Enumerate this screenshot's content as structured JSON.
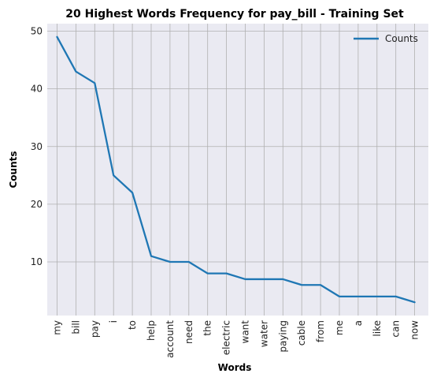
{
  "chart_data": {
    "type": "line",
    "title": "20 Highest Words Frequency for pay_bill - Training Set",
    "xlabel": "Words",
    "ylabel": "Counts",
    "categories": [
      "my",
      "bill",
      "pay",
      "i",
      "to",
      "help",
      "account",
      "need",
      "the",
      "electric",
      "want",
      "water",
      "paying",
      "cable",
      "from",
      "me",
      "a",
      "like",
      "can",
      "now"
    ],
    "series": [
      {
        "name": "Counts",
        "values": [
          49,
          43,
          41,
          25,
          22,
          11,
          10,
          10,
          8,
          8,
          7,
          7,
          7,
          6,
          6,
          4,
          4,
          4,
          4,
          3
        ],
        "color": "#1f77b4"
      }
    ],
    "ylim": [
      0.7,
      51.3
    ],
    "yticks": [
      10,
      20,
      30,
      40,
      50
    ],
    "grid": true,
    "legend": "top-right",
    "background": "#eaeaf2",
    "grid_color": "#b0b0b0"
  }
}
